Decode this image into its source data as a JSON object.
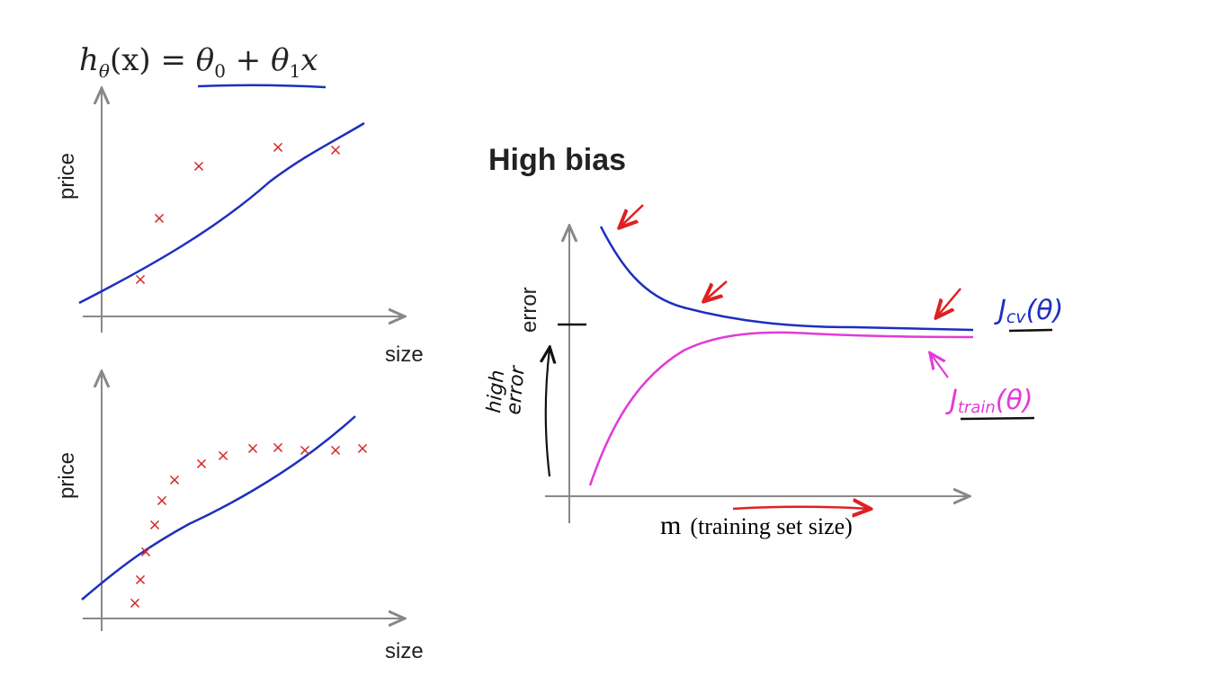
{
  "formula": {
    "h": "h",
    "theta_sub": "θ",
    "x_arg": "(x) = ",
    "theta": "θ",
    "sub0": "0",
    "plus": " + ",
    "theta1": "θ",
    "sub1": "1",
    "x": "x"
  },
  "top_plot": {
    "ylabel": "price",
    "xlabel": "size",
    "marker": "×"
  },
  "bottom_plot": {
    "ylabel": "price",
    "xlabel": "size",
    "marker": "×"
  },
  "learning_curve": {
    "title": "High bias",
    "ylabel": "error",
    "xlabel_m": "m",
    "xlabel_rest": "(training set size)",
    "high_error_note": [
      "high",
      "error"
    ],
    "jcv_label": "J",
    "jcv_sub": "cv",
    "jcv_arg": "(θ)",
    "jtrain_label": "J",
    "jtrain_sub": "train",
    "jtrain_arg": "(θ)"
  },
  "colors": {
    "fit_line": "#1c2fbf",
    "markers": "#d42a2a",
    "jcv": "#1c2fbf",
    "jtrain": "#e23ad8",
    "annotation_arrows": "#e02020",
    "axes": "#888888"
  }
}
